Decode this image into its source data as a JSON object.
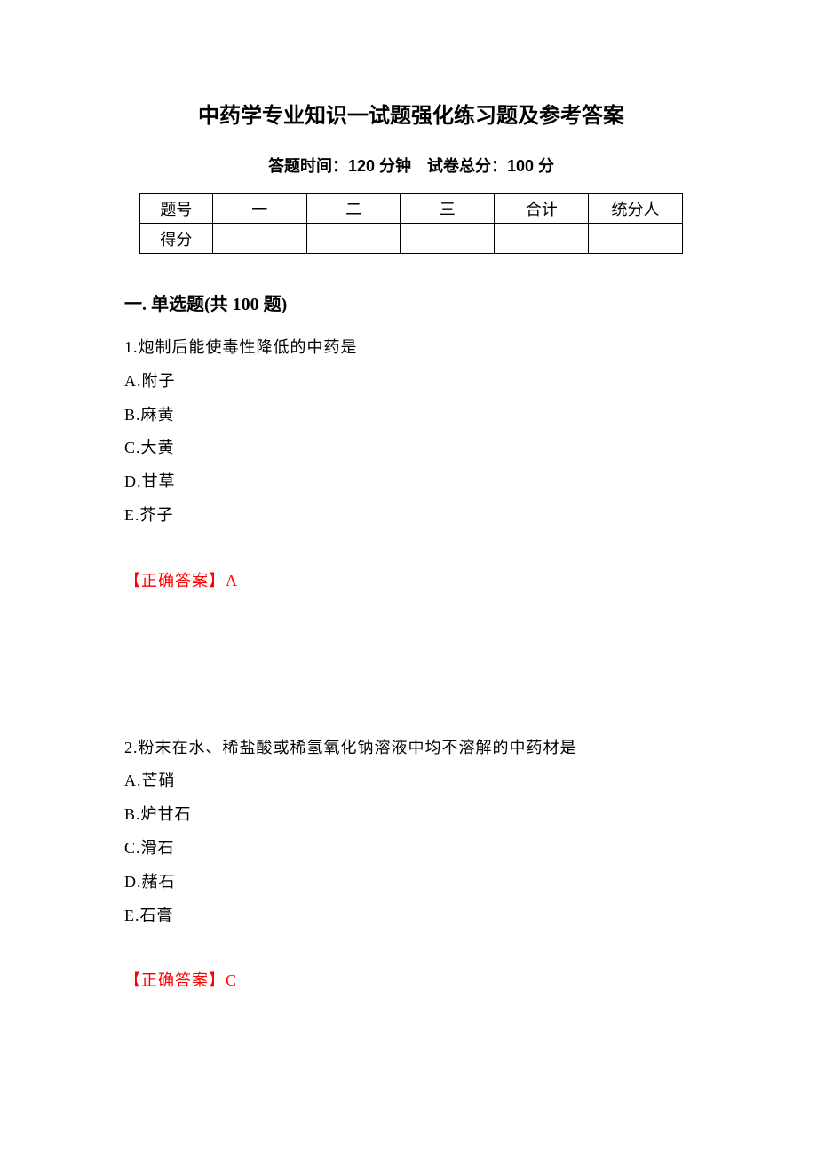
{
  "title": "中药学专业知识一试题强化练习题及参考答案",
  "subtitle": "答题时间：120 分钟　试卷总分：100 分",
  "score_table": {
    "header_row": [
      "题号",
      "一",
      "二",
      "三",
      "合计",
      "统分人"
    ],
    "score_row_label": "得分"
  },
  "section_heading": "一. 单选题(共 100 题)",
  "questions": [
    {
      "number": "1",
      "stem": "炮制后能使毒性降低的中药是",
      "options": [
        {
          "label": "A",
          "text": "附子"
        },
        {
          "label": "B",
          "text": "麻黄"
        },
        {
          "label": "C",
          "text": "大黄"
        },
        {
          "label": "D",
          "text": "甘草"
        },
        {
          "label": "E",
          "text": "芥子"
        }
      ],
      "answer_prefix": "【正确答案】",
      "answer": "A"
    },
    {
      "number": "2",
      "stem": "粉末在水、稀盐酸或稀氢氧化钠溶液中均不溶解的中药材是",
      "options": [
        {
          "label": "A",
          "text": "芒硝"
        },
        {
          "label": "B",
          "text": "炉甘石"
        },
        {
          "label": "C",
          "text": "滑石"
        },
        {
          "label": "D",
          "text": "赭石"
        },
        {
          "label": "E",
          "text": "石膏"
        }
      ],
      "answer_prefix": "【正确答案】",
      "answer": "C"
    }
  ],
  "colors": {
    "answer_color": "#ff0000",
    "text_color": "#000000",
    "background": "#ffffff",
    "border": "#000000"
  }
}
